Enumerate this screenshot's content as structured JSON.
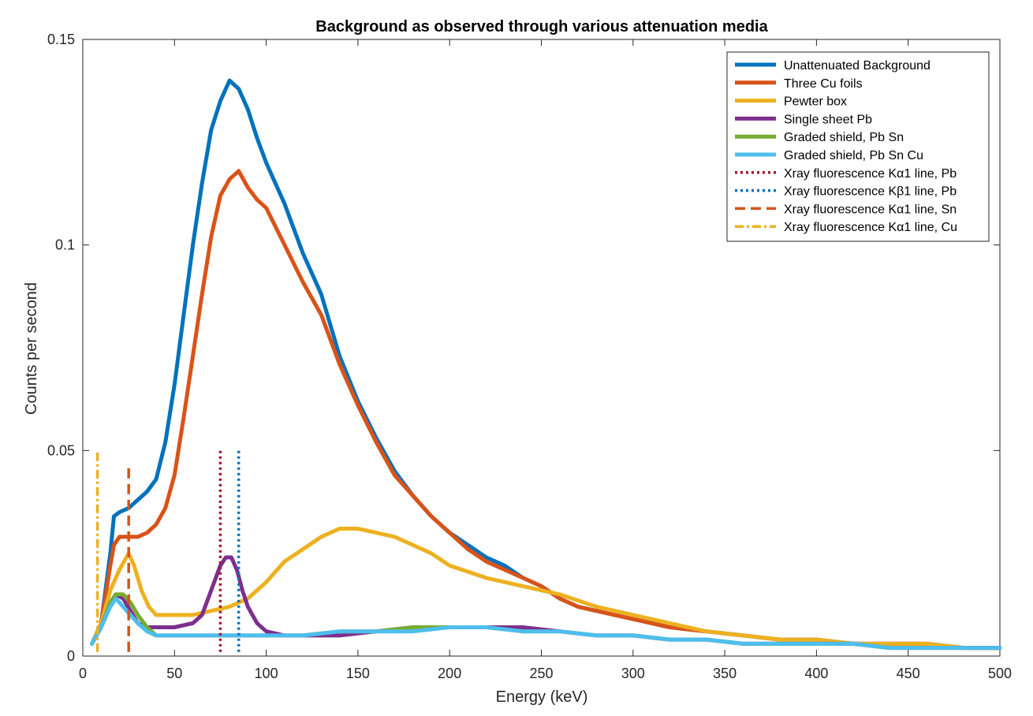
{
  "chart_data": {
    "type": "line",
    "title": "Background as observed through various attenuation media",
    "xlabel": "Energy (keV)",
    "ylabel": "Counts per second",
    "xlim": [
      0,
      500
    ],
    "ylim": [
      0,
      0.15
    ],
    "xticks": [
      0,
      50,
      100,
      150,
      200,
      250,
      300,
      350,
      400,
      450,
      500
    ],
    "xtick_labels": [
      "0",
      "50",
      "100",
      "150",
      "200",
      "250",
      "300",
      "350",
      "400",
      "450",
      "500"
    ],
    "yticks": [
      0,
      0.05,
      0.1,
      0.15
    ],
    "ytick_labels": [
      "0",
      "0.05",
      "0.1",
      "0.15"
    ],
    "grid": false,
    "legend_position": "top-right",
    "series": [
      {
        "name": "Unattenuated Background",
        "color": "#0072BD",
        "style": "solid",
        "x": [
          5,
          10,
          15,
          17,
          20,
          25,
          30,
          35,
          40,
          45,
          50,
          55,
          60,
          65,
          70,
          75,
          80,
          85,
          90,
          95,
          100,
          110,
          120,
          130,
          140,
          150,
          160,
          170,
          180,
          190,
          200,
          210,
          220,
          230,
          240,
          250,
          260,
          270,
          280,
          290,
          300,
          320,
          340,
          360,
          380,
          400,
          420,
          440,
          460,
          480,
          500
        ],
        "y": [
          0.003,
          0.008,
          0.025,
          0.034,
          0.035,
          0.036,
          0.038,
          0.04,
          0.043,
          0.052,
          0.066,
          0.083,
          0.1,
          0.115,
          0.128,
          0.135,
          0.14,
          0.138,
          0.133,
          0.126,
          0.12,
          0.11,
          0.098,
          0.088,
          0.073,
          0.062,
          0.053,
          0.045,
          0.039,
          0.034,
          0.03,
          0.027,
          0.024,
          0.022,
          0.019,
          0.017,
          0.014,
          0.012,
          0.011,
          0.01,
          0.009,
          0.007,
          0.006,
          0.005,
          0.004,
          0.004,
          0.003,
          0.003,
          0.003,
          0.002,
          0.002
        ]
      },
      {
        "name": "Three Cu foils",
        "color": "#D95319",
        "style": "solid",
        "x": [
          5,
          10,
          15,
          17,
          20,
          25,
          30,
          35,
          40,
          45,
          50,
          55,
          60,
          65,
          70,
          75,
          80,
          85,
          90,
          95,
          100,
          110,
          120,
          130,
          140,
          150,
          160,
          170,
          180,
          190,
          200,
          210,
          220,
          230,
          240,
          250,
          260,
          270,
          280,
          290,
          300,
          320,
          340,
          360,
          380,
          400,
          420,
          440,
          460,
          480,
          500
        ],
        "y": [
          0.003,
          0.008,
          0.022,
          0.027,
          0.029,
          0.029,
          0.029,
          0.03,
          0.032,
          0.036,
          0.044,
          0.058,
          0.073,
          0.088,
          0.102,
          0.112,
          0.116,
          0.118,
          0.114,
          0.111,
          0.109,
          0.1,
          0.091,
          0.083,
          0.071,
          0.061,
          0.052,
          0.044,
          0.039,
          0.034,
          0.03,
          0.026,
          0.023,
          0.021,
          0.019,
          0.017,
          0.014,
          0.012,
          0.011,
          0.01,
          0.009,
          0.007,
          0.006,
          0.005,
          0.004,
          0.004,
          0.003,
          0.003,
          0.003,
          0.002,
          0.002
        ]
      },
      {
        "name": "Pewter box",
        "color": "#EDB120",
        "style": "solid",
        "x": [
          5,
          10,
          15,
          20,
          25,
          28,
          32,
          36,
          40,
          50,
          60,
          70,
          80,
          90,
          100,
          110,
          120,
          130,
          140,
          150,
          160,
          170,
          180,
          190,
          200,
          220,
          240,
          260,
          280,
          300,
          320,
          340,
          360,
          380,
          400,
          420,
          440,
          460,
          480,
          500
        ],
        "y": [
          0.003,
          0.008,
          0.016,
          0.021,
          0.025,
          0.022,
          0.016,
          0.012,
          0.01,
          0.01,
          0.01,
          0.011,
          0.012,
          0.014,
          0.018,
          0.023,
          0.026,
          0.029,
          0.031,
          0.031,
          0.03,
          0.029,
          0.027,
          0.025,
          0.022,
          0.019,
          0.017,
          0.015,
          0.012,
          0.01,
          0.008,
          0.006,
          0.005,
          0.004,
          0.004,
          0.003,
          0.003,
          0.003,
          0.002,
          0.002
        ]
      },
      {
        "name": "Single sheet Pb",
        "color": "#7E2F8E",
        "style": "solid",
        "x": [
          5,
          10,
          15,
          18,
          22,
          26,
          30,
          35,
          40,
          50,
          60,
          65,
          70,
          75,
          78,
          81,
          84,
          87,
          90,
          95,
          100,
          110,
          120,
          140,
          160,
          180,
          200,
          220,
          240,
          260,
          280,
          300,
          320,
          340,
          360,
          380,
          400,
          420,
          440,
          460,
          480,
          500
        ],
        "y": [
          0.003,
          0.007,
          0.013,
          0.015,
          0.014,
          0.011,
          0.008,
          0.007,
          0.007,
          0.007,
          0.008,
          0.01,
          0.016,
          0.022,
          0.024,
          0.024,
          0.021,
          0.016,
          0.012,
          0.008,
          0.006,
          0.005,
          0.005,
          0.005,
          0.006,
          0.007,
          0.007,
          0.007,
          0.007,
          0.006,
          0.005,
          0.005,
          0.004,
          0.004,
          0.003,
          0.003,
          0.003,
          0.003,
          0.002,
          0.002,
          0.002,
          0.002
        ]
      },
      {
        "name": "Graded shield, Pb Sn",
        "color": "#77AC30",
        "style": "solid",
        "x": [
          5,
          10,
          15,
          18,
          22,
          26,
          30,
          35,
          40,
          50,
          60,
          70,
          80,
          90,
          100,
          110,
          120,
          140,
          160,
          180,
          200,
          220,
          240,
          260,
          280,
          300,
          320,
          340,
          360,
          380,
          400,
          420,
          440,
          460,
          480,
          500
        ],
        "y": [
          0.003,
          0.007,
          0.013,
          0.015,
          0.015,
          0.013,
          0.01,
          0.007,
          0.005,
          0.005,
          0.005,
          0.005,
          0.005,
          0.005,
          0.005,
          0.005,
          0.005,
          0.006,
          0.006,
          0.007,
          0.007,
          0.007,
          0.006,
          0.006,
          0.005,
          0.005,
          0.004,
          0.004,
          0.003,
          0.003,
          0.003,
          0.003,
          0.002,
          0.002,
          0.002,
          0.002
        ]
      },
      {
        "name": "Graded shield, Pb Sn Cu",
        "color": "#4DBEEE",
        "style": "solid",
        "x": [
          5,
          10,
          15,
          18,
          22,
          26,
          30,
          35,
          40,
          50,
          60,
          70,
          80,
          90,
          100,
          110,
          120,
          140,
          160,
          180,
          200,
          220,
          240,
          260,
          280,
          300,
          320,
          340,
          360,
          380,
          400,
          420,
          440,
          460,
          480,
          500
        ],
        "y": [
          0.003,
          0.007,
          0.012,
          0.014,
          0.012,
          0.01,
          0.008,
          0.006,
          0.005,
          0.005,
          0.005,
          0.005,
          0.005,
          0.005,
          0.005,
          0.005,
          0.005,
          0.006,
          0.006,
          0.006,
          0.007,
          0.007,
          0.006,
          0.006,
          0.005,
          0.005,
          0.004,
          0.004,
          0.003,
          0.003,
          0.003,
          0.003,
          0.002,
          0.002,
          0.002,
          0.002
        ]
      },
      {
        "name": "Xray fluorescence Kα1 line, Pb",
        "color": "#A2142F",
        "style": "dotted",
        "x": [
          75,
          75
        ],
        "y": [
          0.001,
          0.05
        ]
      },
      {
        "name": "Xray fluorescence Kβ1 line, Pb",
        "color": "#0072BD",
        "style": "dotted",
        "x": [
          85,
          85
        ],
        "y": [
          0.001,
          0.05
        ]
      },
      {
        "name": "Xray fluorescence Kα1 line, Sn",
        "color": "#D95319",
        "style": "dashed",
        "x": [
          25,
          25
        ],
        "y": [
          0.001,
          0.046
        ]
      },
      {
        "name": "Xray fluorescence Kα1 line, Cu",
        "color": "#EDB120",
        "style": "dashdot",
        "x": [
          8,
          8
        ],
        "y": [
          0.001,
          0.05
        ]
      }
    ]
  }
}
